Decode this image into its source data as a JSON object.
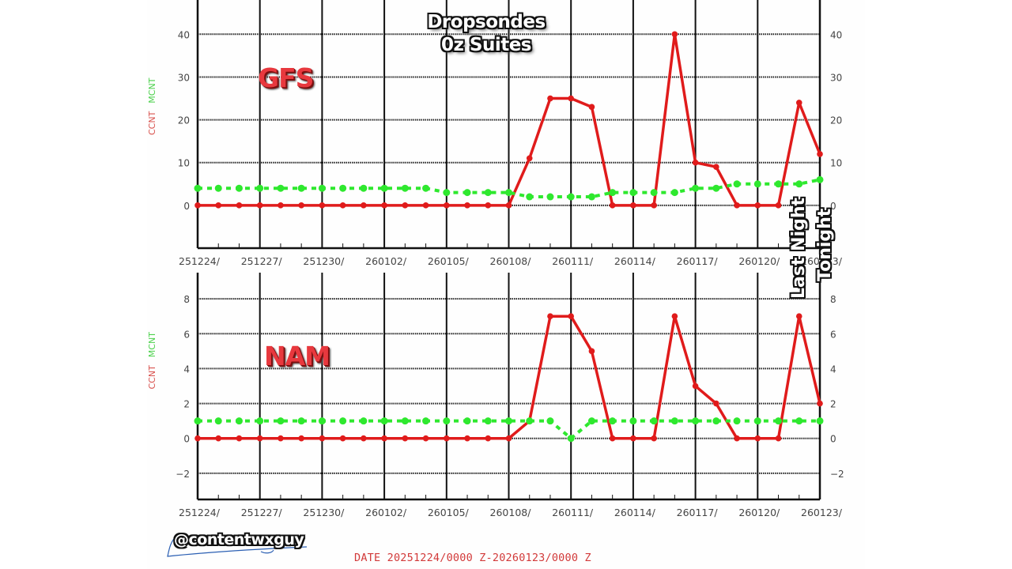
{
  "title": {
    "line1": "Dropsondes",
    "line2": "0z Suites"
  },
  "annotations": {
    "gfs_label": "GFS",
    "nam_label": "NAM",
    "last_night": "Last Night",
    "tonight": "Tonight",
    "watermark": "@contentwxguy",
    "date_range": "DATE 20251224/0000 Z-20260123/0000 Z"
  },
  "colors": {
    "ccnt": "#e01b1b",
    "mcnt": "#2ee82e",
    "ccnt_label": "#d9534f",
    "mcnt_label": "#4cd14c",
    "grid": "#222222",
    "axis_text": "#444444"
  },
  "chart_data": [
    {
      "type": "line",
      "panel": "GFS",
      "title": "Dropsondes 0z Suites",
      "xlabel": "DATE 20251224/0000 Z-20260123/0000 Z",
      "ylabel": [
        "CCNT",
        "MCNT"
      ],
      "ylim": [
        -10,
        48
      ],
      "yticks": [
        0,
        10,
        20,
        30,
        40
      ],
      "grid": true,
      "x_tick_labels": [
        "251224/",
        "251227/",
        "251230/",
        "260102/",
        "260105/",
        "260108/",
        "260111/",
        "260114/",
        "260117/",
        "260120/",
        "260123/"
      ],
      "x_days": 30,
      "series": [
        {
          "name": "CCNT",
          "color": "#e01b1b",
          "style": "solid",
          "values": [
            0,
            0,
            0,
            0,
            0,
            0,
            0,
            0,
            0,
            0,
            0,
            0,
            0,
            0,
            0,
            0,
            11,
            25,
            25,
            23,
            0,
            0,
            0,
            40,
            10,
            9,
            0,
            0,
            0,
            24,
            12
          ]
        },
        {
          "name": "MCNT",
          "color": "#2ee82e",
          "style": "dashed",
          "values": [
            4,
            4,
            4,
            4,
            4,
            4,
            4,
            4,
            4,
            4,
            4,
            4,
            3,
            3,
            3,
            3,
            2,
            2,
            2,
            2,
            3,
            3,
            3,
            3,
            4,
            4,
            5,
            5,
            5,
            5,
            6
          ]
        }
      ]
    },
    {
      "type": "line",
      "panel": "NAM",
      "xlabel": "DATE 20251224/0000 Z-20260123/0000 Z",
      "ylabel": [
        "CCNT",
        "MCNT"
      ],
      "ylim": [
        -3.5,
        9.5
      ],
      "yticks": [
        -2,
        0,
        2,
        4,
        6,
        8
      ],
      "grid": true,
      "x_tick_labels": [
        "251224/",
        "251227/",
        "251230/",
        "260102/",
        "260105/",
        "260108/",
        "260111/",
        "260114/",
        "260117/",
        "260120/",
        "260123/"
      ],
      "x_days": 30,
      "series": [
        {
          "name": "CCNT",
          "color": "#e01b1b",
          "style": "solid",
          "values": [
            0,
            0,
            0,
            0,
            0,
            0,
            0,
            0,
            0,
            0,
            0,
            0,
            0,
            0,
            0,
            0,
            1,
            7,
            7,
            5,
            0,
            0,
            0,
            7,
            3,
            2,
            0,
            0,
            0,
            7,
            2
          ]
        },
        {
          "name": "MCNT",
          "color": "#2ee82e",
          "style": "dashed",
          "values": [
            1,
            1,
            1,
            1,
            1,
            1,
            1,
            1,
            1,
            1,
            1,
            1,
            1,
            1,
            1,
            1,
            1,
            1,
            0,
            1,
            1,
            1,
            1,
            1,
            1,
            1,
            1,
            1,
            1,
            1,
            1
          ]
        }
      ]
    }
  ]
}
